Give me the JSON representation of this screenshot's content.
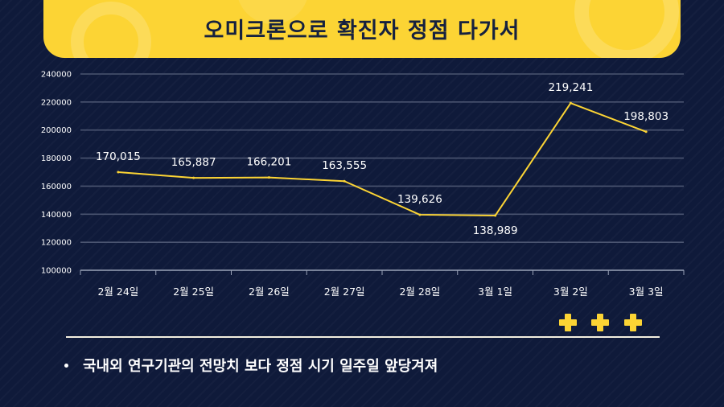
{
  "title": "오미크론으로 확진자 정점 다가서",
  "bullet_text": "국내외 연구기관의 전망치 보다 정점 시기 일주일 앞당겨져",
  "colors": {
    "banner": "#fcd434",
    "line": "#fcd434",
    "background": "#0f1a3a",
    "grid": "#4a5470",
    "text": "#ffffff"
  },
  "icons": [
    "plus-icon",
    "plus-icon",
    "plus-icon"
  ],
  "chart_data": {
    "type": "line",
    "categories": [
      "2월 24일",
      "2월 25일",
      "2월 26일",
      "2월 27일",
      "2월 28일",
      "3월 1일",
      "3월 2일",
      "3월 3일"
    ],
    "values": [
      170015,
      165887,
      166201,
      163555,
      139626,
      138989,
      219241,
      198803
    ],
    "data_labels": [
      "170,015",
      "165,887",
      "166,201",
      "163,555",
      "139,626",
      "138,989",
      "219,241",
      "198,803"
    ],
    "y_ticks": [
      "100000",
      "120000",
      "140000",
      "160000",
      "180000",
      "200000",
      "220000",
      "240000"
    ],
    "ylim": [
      100000,
      240000
    ],
    "grid": true,
    "legend": "none"
  }
}
